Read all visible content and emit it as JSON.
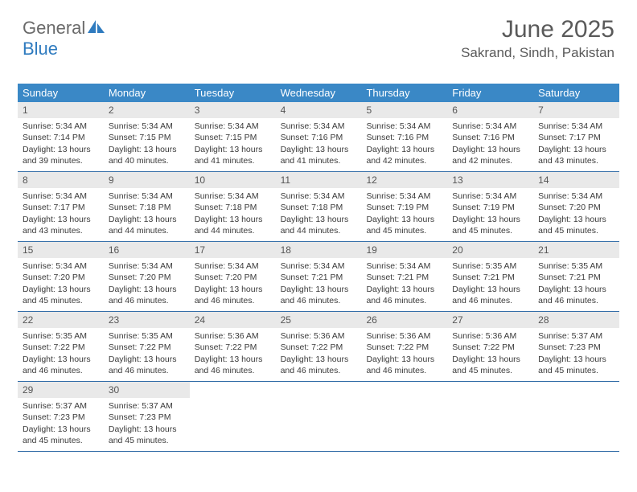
{
  "branding": {
    "text_general": "General",
    "text_blue": "Blue",
    "icon_color": "#2f7bbf"
  },
  "header": {
    "month_title": "June 2025",
    "location": "Sakrand, Sindh, Pakistan"
  },
  "colors": {
    "header_bg": "#3a88c6",
    "header_text": "#ffffff",
    "daynum_bg": "#e9e9e9",
    "rule": "#346ea8",
    "body_text": "#3a3a3a"
  },
  "day_headers": [
    "Sunday",
    "Monday",
    "Tuesday",
    "Wednesday",
    "Thursday",
    "Friday",
    "Saturday"
  ],
  "weeks": [
    [
      {
        "n": "1",
        "sr": "5:34 AM",
        "ss": "7:14 PM",
        "dl": "13 hours and 39 minutes."
      },
      {
        "n": "2",
        "sr": "5:34 AM",
        "ss": "7:15 PM",
        "dl": "13 hours and 40 minutes."
      },
      {
        "n": "3",
        "sr": "5:34 AM",
        "ss": "7:15 PM",
        "dl": "13 hours and 41 minutes."
      },
      {
        "n": "4",
        "sr": "5:34 AM",
        "ss": "7:16 PM",
        "dl": "13 hours and 41 minutes."
      },
      {
        "n": "5",
        "sr": "5:34 AM",
        "ss": "7:16 PM",
        "dl": "13 hours and 42 minutes."
      },
      {
        "n": "6",
        "sr": "5:34 AM",
        "ss": "7:16 PM",
        "dl": "13 hours and 42 minutes."
      },
      {
        "n": "7",
        "sr": "5:34 AM",
        "ss": "7:17 PM",
        "dl": "13 hours and 43 minutes."
      }
    ],
    [
      {
        "n": "8",
        "sr": "5:34 AM",
        "ss": "7:17 PM",
        "dl": "13 hours and 43 minutes."
      },
      {
        "n": "9",
        "sr": "5:34 AM",
        "ss": "7:18 PM",
        "dl": "13 hours and 44 minutes."
      },
      {
        "n": "10",
        "sr": "5:34 AM",
        "ss": "7:18 PM",
        "dl": "13 hours and 44 minutes."
      },
      {
        "n": "11",
        "sr": "5:34 AM",
        "ss": "7:18 PM",
        "dl": "13 hours and 44 minutes."
      },
      {
        "n": "12",
        "sr": "5:34 AM",
        "ss": "7:19 PM",
        "dl": "13 hours and 45 minutes."
      },
      {
        "n": "13",
        "sr": "5:34 AM",
        "ss": "7:19 PM",
        "dl": "13 hours and 45 minutes."
      },
      {
        "n": "14",
        "sr": "5:34 AM",
        "ss": "7:20 PM",
        "dl": "13 hours and 45 minutes."
      }
    ],
    [
      {
        "n": "15",
        "sr": "5:34 AM",
        "ss": "7:20 PM",
        "dl": "13 hours and 45 minutes."
      },
      {
        "n": "16",
        "sr": "5:34 AM",
        "ss": "7:20 PM",
        "dl": "13 hours and 46 minutes."
      },
      {
        "n": "17",
        "sr": "5:34 AM",
        "ss": "7:20 PM",
        "dl": "13 hours and 46 minutes."
      },
      {
        "n": "18",
        "sr": "5:34 AM",
        "ss": "7:21 PM",
        "dl": "13 hours and 46 minutes."
      },
      {
        "n": "19",
        "sr": "5:34 AM",
        "ss": "7:21 PM",
        "dl": "13 hours and 46 minutes."
      },
      {
        "n": "20",
        "sr": "5:35 AM",
        "ss": "7:21 PM",
        "dl": "13 hours and 46 minutes."
      },
      {
        "n": "21",
        "sr": "5:35 AM",
        "ss": "7:21 PM",
        "dl": "13 hours and 46 minutes."
      }
    ],
    [
      {
        "n": "22",
        "sr": "5:35 AM",
        "ss": "7:22 PM",
        "dl": "13 hours and 46 minutes."
      },
      {
        "n": "23",
        "sr": "5:35 AM",
        "ss": "7:22 PM",
        "dl": "13 hours and 46 minutes."
      },
      {
        "n": "24",
        "sr": "5:36 AM",
        "ss": "7:22 PM",
        "dl": "13 hours and 46 minutes."
      },
      {
        "n": "25",
        "sr": "5:36 AM",
        "ss": "7:22 PM",
        "dl": "13 hours and 46 minutes."
      },
      {
        "n": "26",
        "sr": "5:36 AM",
        "ss": "7:22 PM",
        "dl": "13 hours and 46 minutes."
      },
      {
        "n": "27",
        "sr": "5:36 AM",
        "ss": "7:22 PM",
        "dl": "13 hours and 45 minutes."
      },
      {
        "n": "28",
        "sr": "5:37 AM",
        "ss": "7:23 PM",
        "dl": "13 hours and 45 minutes."
      }
    ],
    [
      {
        "n": "29",
        "sr": "5:37 AM",
        "ss": "7:23 PM",
        "dl": "13 hours and 45 minutes."
      },
      {
        "n": "30",
        "sr": "5:37 AM",
        "ss": "7:23 PM",
        "dl": "13 hours and 45 minutes."
      },
      null,
      null,
      null,
      null,
      null
    ]
  ],
  "labels": {
    "sunrise": "Sunrise: ",
    "sunset": "Sunset: ",
    "daylight": "Daylight: "
  }
}
